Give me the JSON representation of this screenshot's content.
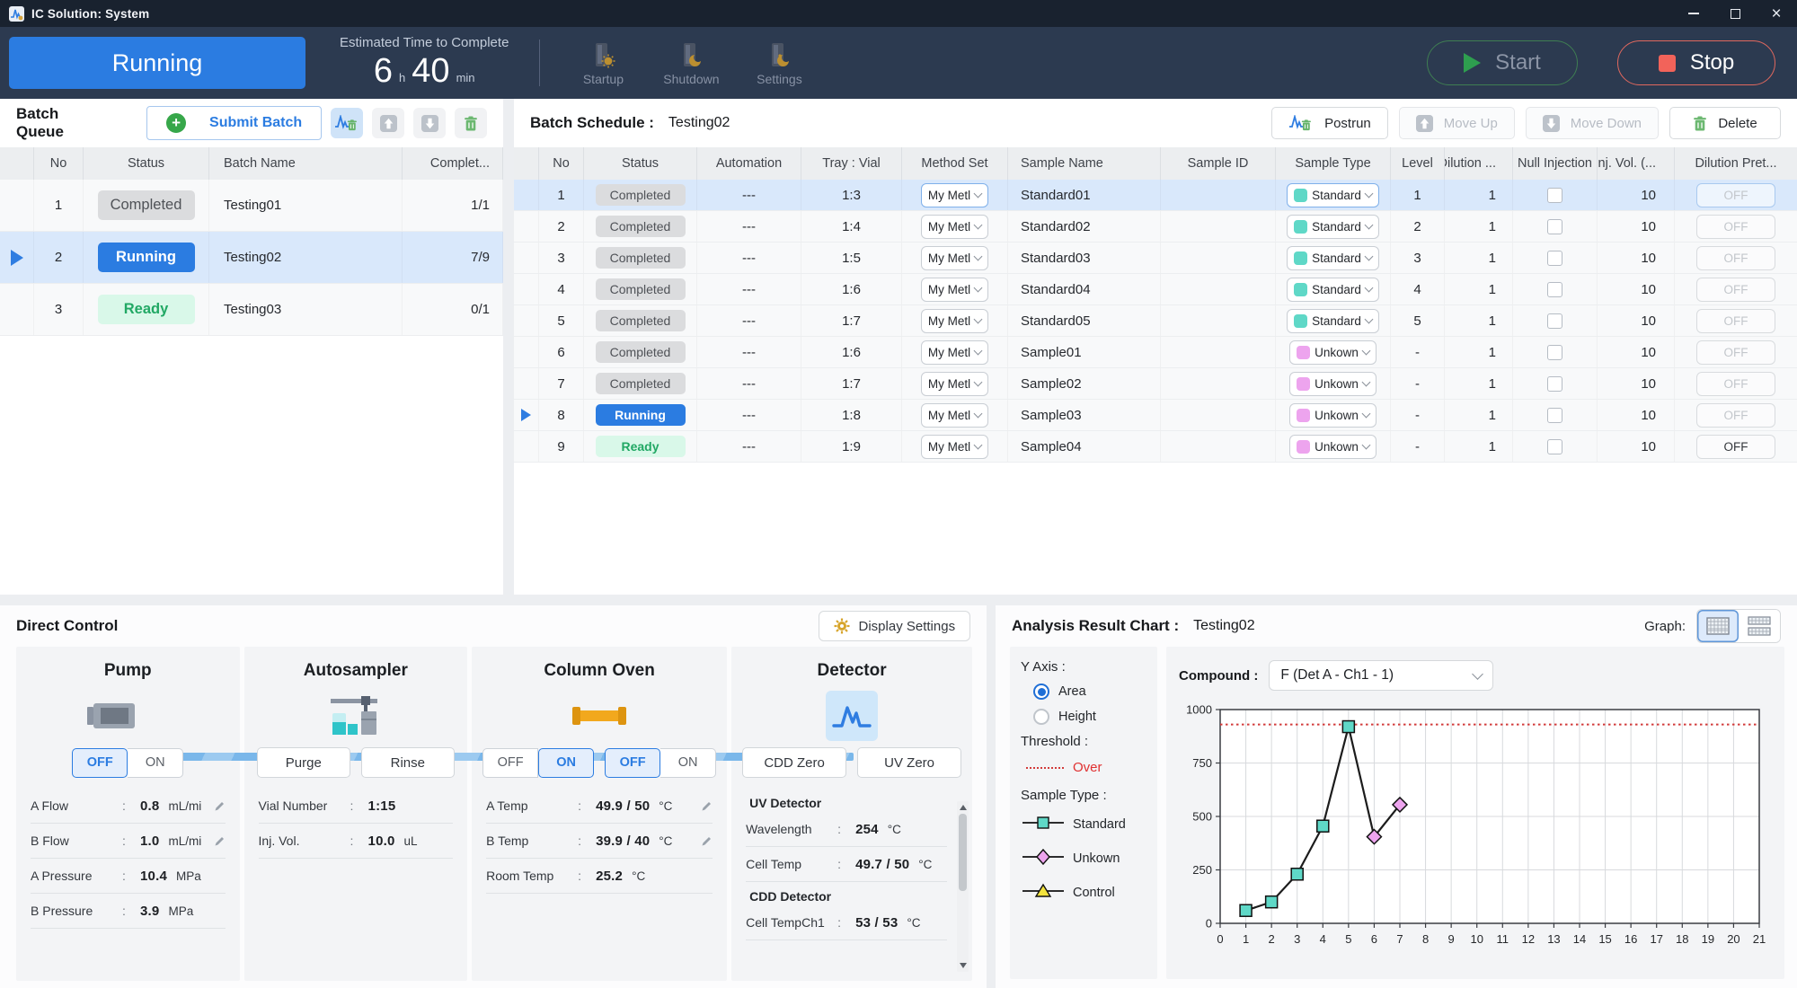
{
  "colors": {
    "accent": "#2b7ce1",
    "swatches": {
      "Standard": "#5fd8c7",
      "Unkown": "#eda4ee",
      "Control": "#f2e33e"
    },
    "threshold": "#d23b3b",
    "line": "#1c1c1c"
  },
  "window": {
    "title": "IC Solution: System"
  },
  "topbar": {
    "status": "Running",
    "eta_label": "Estimated Time to Complete",
    "eta_hours": "6",
    "eta_hours_unit": "h",
    "eta_minutes": "40",
    "eta_minutes_unit": "min",
    "nav": [
      {
        "label": "Startup",
        "icon": "startup"
      },
      {
        "label": "Shutdown",
        "icon": "shutdown"
      },
      {
        "label": "Settings",
        "icon": "settings"
      }
    ],
    "start_label": "Start",
    "stop_label": "Stop"
  },
  "batch_queue": {
    "title": "Batch Queue",
    "submit_label": "Submit Batch",
    "toolbar": [
      {
        "name": "postrun-queue",
        "icon": "peak-trash",
        "highlight": true
      },
      {
        "name": "move-up-queue",
        "icon": "arrow-up-sq",
        "highlight": false
      },
      {
        "name": "move-down-queue",
        "icon": "arrow-down-sq",
        "highlight": false
      },
      {
        "name": "delete-queue",
        "icon": "trash",
        "highlight": false
      }
    ],
    "headers": [
      "",
      "No",
      "Status",
      "Batch Name",
      "Complet..."
    ],
    "rows": [
      {
        "no": "1",
        "status": "Completed",
        "name": "Testing01",
        "completed": "1/1",
        "current": false,
        "selected": false
      },
      {
        "no": "2",
        "status": "Running",
        "name": "Testing02",
        "completed": "7/9",
        "current": true,
        "selected": true
      },
      {
        "no": "3",
        "status": "Ready",
        "name": "Testing03",
        "completed": "0/1",
        "current": false,
        "selected": false
      }
    ]
  },
  "batch_schedule": {
    "title": "Batch Schedule :",
    "name": "Testing02",
    "buttons": {
      "postrun": "Postrun",
      "move_up": "Move Up",
      "move_down": "Move Down",
      "delete": "Delete"
    },
    "headers": [
      "",
      "No",
      "Status",
      "Automation",
      "Tray : Vial",
      "Method Set",
      "Sample Name",
      "Sample ID",
      "Sample Type",
      "Level",
      "Dilution ...",
      "Null Injection",
      "Inj. Vol. (...",
      "Dilution Pret..."
    ],
    "method_set": "My Metl",
    "rows": [
      {
        "no": "1",
        "status": "Completed",
        "automation": "---",
        "tray_vial": "1:3",
        "sample_name": "Standard01",
        "sample_id": "",
        "sample_type": "Standard",
        "level": "1",
        "dilution": "1",
        "null_injection": false,
        "inj_vol": "10",
        "dilution_pret": "OFF",
        "dilution_pret_active": false,
        "selected": true,
        "current": false
      },
      {
        "no": "2",
        "status": "Completed",
        "automation": "---",
        "tray_vial": "1:4",
        "sample_name": "Standard02",
        "sample_id": "",
        "sample_type": "Standard",
        "level": "2",
        "dilution": "1",
        "null_injection": false,
        "inj_vol": "10",
        "dilution_pret": "OFF",
        "dilution_pret_active": false,
        "selected": false,
        "current": false
      },
      {
        "no": "3",
        "status": "Completed",
        "automation": "---",
        "tray_vial": "1:5",
        "sample_name": "Standard03",
        "sample_id": "",
        "sample_type": "Standard",
        "level": "3",
        "dilution": "1",
        "null_injection": false,
        "inj_vol": "10",
        "dilution_pret": "OFF",
        "dilution_pret_active": false,
        "selected": false,
        "current": false
      },
      {
        "no": "4",
        "status": "Completed",
        "automation": "---",
        "tray_vial": "1:6",
        "sample_name": "Standard04",
        "sample_id": "",
        "sample_type": "Standard",
        "level": "4",
        "dilution": "1",
        "null_injection": false,
        "inj_vol": "10",
        "dilution_pret": "OFF",
        "dilution_pret_active": false,
        "selected": false,
        "current": false
      },
      {
        "no": "5",
        "status": "Completed",
        "automation": "---",
        "tray_vial": "1:7",
        "sample_name": "Standard05",
        "sample_id": "",
        "sample_type": "Standard",
        "level": "5",
        "dilution": "1",
        "null_injection": false,
        "inj_vol": "10",
        "dilution_pret": "OFF",
        "dilution_pret_active": false,
        "selected": false,
        "current": false
      },
      {
        "no": "6",
        "status": "Completed",
        "automation": "---",
        "tray_vial": "1:6",
        "sample_name": "Sample01",
        "sample_id": "",
        "sample_type": "Unkown",
        "level": "-",
        "dilution": "1",
        "null_injection": false,
        "inj_vol": "10",
        "dilution_pret": "OFF",
        "dilution_pret_active": false,
        "selected": false,
        "current": false
      },
      {
        "no": "7",
        "status": "Completed",
        "automation": "---",
        "tray_vial": "1:7",
        "sample_name": "Sample02",
        "sample_id": "",
        "sample_type": "Unkown",
        "level": "-",
        "dilution": "1",
        "null_injection": false,
        "inj_vol": "10",
        "dilution_pret": "OFF",
        "dilution_pret_active": false,
        "selected": false,
        "current": false
      },
      {
        "no": "8",
        "status": "Running",
        "automation": "---",
        "tray_vial": "1:8",
        "sample_name": "Sample03",
        "sample_id": "",
        "sample_type": "Unkown",
        "level": "-",
        "dilution": "1",
        "null_injection": false,
        "inj_vol": "10",
        "dilution_pret": "OFF",
        "dilution_pret_active": false,
        "selected": false,
        "current": true
      },
      {
        "no": "9",
        "status": "Ready",
        "automation": "---",
        "tray_vial": "1:9",
        "sample_name": "Sample04",
        "sample_id": "",
        "sample_type": "Unkown",
        "level": "-",
        "dilution": "1",
        "null_injection": false,
        "inj_vol": "10",
        "dilution_pret": "OFF",
        "dilution_pret_active": true,
        "selected": false,
        "current": false
      }
    ]
  },
  "direct_control": {
    "title": "Direct Control",
    "display_settings_label": "Display Settings",
    "pump": {
      "title": "Pump",
      "toggle": {
        "options": [
          "OFF",
          "ON"
        ],
        "active": "OFF"
      },
      "fields": [
        {
          "label": "A Flow",
          "value": "0.8",
          "unit": "mL/mi",
          "editable": true
        },
        {
          "label": "B Flow",
          "value": "1.0",
          "unit": "mL/mi",
          "editable": true
        },
        {
          "label": "A Pressure",
          "value": "10.4",
          "unit": "MPa",
          "editable": false
        },
        {
          "label": "B Pressure",
          "value": "3.9",
          "unit": "MPa",
          "editable": false
        }
      ]
    },
    "autosampler": {
      "title": "Autosampler",
      "buttons": [
        "Purge",
        "Rinse"
      ],
      "fields": [
        {
          "label": "Vial Number",
          "value": "1:15",
          "unit": "",
          "editable": false
        },
        {
          "label": "Inj. Vol.",
          "value": "10.0",
          "unit": "uL",
          "editable": false
        }
      ]
    },
    "column_oven": {
      "title": "Column Oven",
      "toggles": [
        {
          "options": [
            "OFF",
            "ON"
          ],
          "active": "ON"
        },
        {
          "options": [
            "OFF",
            "ON"
          ],
          "active": "OFF"
        }
      ],
      "fields": [
        {
          "label": "A Temp",
          "value": "49.9 / 50",
          "unit": "°C",
          "editable": true
        },
        {
          "label": "B Temp",
          "value": "39.9 / 40",
          "unit": "°C",
          "editable": true
        },
        {
          "label": "Room Temp",
          "value": "25.2",
          "unit": "°C",
          "editable": false
        }
      ]
    },
    "detector": {
      "title": "Detector",
      "buttons": [
        "CDD Zero",
        "UV Zero"
      ],
      "sections": [
        {
          "heading": "UV Detector",
          "fields": [
            {
              "label": "Wavelength",
              "value": "254",
              "unit": "°C",
              "editable": false
            },
            {
              "label": "Cell Temp",
              "value": "49.7 / 50",
              "unit": "°C",
              "editable": false
            }
          ]
        },
        {
          "heading": "CDD Detector",
          "fields": [
            {
              "label": "Cell TempCh1",
              "value": "53 / 53",
              "unit": "°C",
              "editable": false
            }
          ]
        }
      ]
    }
  },
  "analysis": {
    "title": "Analysis Result Chart :",
    "name": "Testing02",
    "graph_label": "Graph:",
    "y_axis_label": "Y Axis :",
    "y_axis_options": [
      {
        "label": "Area",
        "selected": true
      },
      {
        "label": "Height",
        "selected": false
      }
    ],
    "threshold_label": "Threshold :",
    "threshold_legend": "Over",
    "sample_type_label": "Sample Type :",
    "legend": [
      {
        "label": "Standard",
        "marker": "square",
        "color": "#5fd8c7"
      },
      {
        "label": "Unkown",
        "marker": "diamond",
        "color": "#eda4ee"
      },
      {
        "label": "Control",
        "marker": "triangle",
        "color": "#f2e33e"
      }
    ],
    "compound_label": "Compound :",
    "compound_value": "F (Det A - Ch1 - 1)"
  },
  "chart_data": {
    "type": "line",
    "title": "Analysis Result Chart : Testing02",
    "xlabel": "",
    "ylabel": "",
    "x": [
      1,
      2,
      3,
      4,
      5,
      6,
      7
    ],
    "series": [
      {
        "name": "F (Det A - Ch1 - 1) Area",
        "values": [
          60,
          100,
          230,
          455,
          920,
          405,
          555
        ]
      }
    ],
    "point_sample_types": [
      "Standard",
      "Standard",
      "Standard",
      "Standard",
      "Standard",
      "Unkown",
      "Unkown"
    ],
    "threshold_value": 930,
    "xlim": [
      0,
      21
    ],
    "ylim": [
      0,
      1000
    ],
    "x_ticks": [
      0,
      1,
      2,
      3,
      4,
      5,
      6,
      7,
      8,
      9,
      10,
      11,
      12,
      13,
      14,
      15,
      16,
      17,
      18,
      19,
      20,
      21
    ],
    "y_ticks": [
      0,
      250,
      500,
      750,
      1000
    ],
    "grid": true,
    "legend_entries": [
      "Standard",
      "Unkown",
      "Control"
    ],
    "legend_position": "left-panel"
  }
}
